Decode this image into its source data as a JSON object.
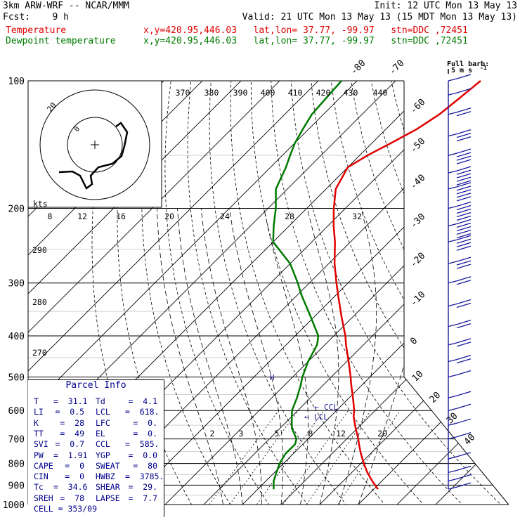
{
  "header": {
    "model": "3km ARW-WRF -- NCAR/MMM",
    "init": "Init: 12 UTC Mon 13 May 13",
    "fcst": "Fcst:    9 h",
    "valid": "Valid: 21 UTC Mon 13 May 13 (15 MDT Mon 13 May 13)",
    "temp_label": "Temperature",
    "temp_info": "x,y=420.95,446.03   lat,lon= 37.77, -99.97   stn=DDC ,72451",
    "dewp_label": "Dewpoint temperature",
    "dewp_info": "x,y=420.95,446.03   lat,lon= 37.77, -99.97   stn=DDC ,72451"
  },
  "barb_legend": {
    "title": "Full barb:",
    "value": "5 m s",
    "exp": "-1"
  },
  "hodograph": {
    "kts_label": "kts",
    "ring_label": "20",
    "inner_label": "0"
  },
  "parcel": {
    "title": "Parcel Info",
    "rows": [
      {
        "k1": "T",
        "v1": "31.1",
        "k2": "Td",
        "v2": "4.1"
      },
      {
        "k1": "LI",
        "v1": "0.5",
        "k2": "LCL",
        "v2": "618."
      },
      {
        "k1": "K",
        "v1": "28",
        "k2": "LFC",
        "v2": "0."
      },
      {
        "k1": "TT",
        "v1": "49",
        "k2": "EL",
        "v2": "0."
      },
      {
        "k1": "SVI",
        "v1": "0.7",
        "k2": "CCL",
        "v2": "585."
      },
      {
        "k1": "PW",
        "v1": "1.91",
        "k2": "YGP",
        "v2": "0.0"
      },
      {
        "k1": "CAPE",
        "v1": "0",
        "k2": "SWEAT",
        "v2": "80"
      },
      {
        "k1": "CIN",
        "v1": "0",
        "k2": "HWBZ",
        "v2": "3785."
      },
      {
        "k1": "Tc",
        "v1": "34.6",
        "k2": "SHEAR",
        "v2": "29."
      },
      {
        "k1": "SREH",
        "v1": "78",
        "k2": "LAPSE",
        "v2": "7.7"
      },
      {
        "k1": "CELL",
        "v1": "= 353/09",
        "k2": "",
        "v2": ""
      }
    ]
  },
  "level_labels": {
    "ccl": "CCL",
    "lcl": "LCL"
  },
  "chart_data": {
    "type": "line",
    "chart_kind": "skew-T log-p",
    "pressure_ticks": [
      100,
      200,
      300,
      400,
      500,
      600,
      700,
      800,
      900,
      1000
    ],
    "skewed_temp_labels": [
      -80,
      -70,
      -60,
      -50,
      -40,
      -30,
      -20,
      -10,
      0,
      10,
      20,
      30,
      40
    ],
    "theta_labels": [
      370,
      380,
      390,
      400,
      410,
      420,
      430,
      440
    ],
    "theta_axis_labels": [
      290,
      280,
      270
    ],
    "mixing_ratio_labels": [
      2,
      3,
      5,
      8,
      12,
      20
    ],
    "upper_mixing_labels": [
      8,
      12,
      16,
      20,
      24,
      28,
      32
    ],
    "legend": [
      "Temperature",
      "Dewpoint temperature"
    ],
    "colors": {
      "temperature": "#e00000",
      "dewpoint": "#007a00",
      "barbs": "#1a1aa0"
    },
    "pressure_levels": [
      920,
      880,
      840,
      800,
      760,
      720,
      700,
      660,
      620,
      600,
      560,
      520,
      500,
      460,
      420,
      400,
      360,
      320,
      300,
      270,
      240,
      220,
      200,
      180,
      160,
      150,
      140,
      130,
      120,
      110,
      100
    ],
    "series": [
      {
        "name": "Temperature",
        "values": [
          31.1,
          27.5,
          24.0,
          20.8,
          17.6,
          14.5,
          13.0,
          9.5,
          6.0,
          4.6,
          1.0,
          -3.0,
          -5.0,
          -9.5,
          -14.5,
          -17.0,
          -23.0,
          -29.5,
          -33.0,
          -38.5,
          -44.0,
          -48.5,
          -53.0,
          -57.5,
          -60.0,
          -58.0,
          -55.0,
          -52.0,
          -50.0,
          -49.0,
          -48.0
        ]
      },
      {
        "name": "Dewpoint temperature",
        "values": [
          4.1,
          2.0,
          0.5,
          -1.0,
          -2.0,
          -2.0,
          -3.0,
          -7.0,
          -10.0,
          -11.5,
          -13.5,
          -16.0,
          -17.5,
          -20.0,
          -22.0,
          -24.0,
          -31.0,
          -39.0,
          -43.0,
          -50.0,
          -60.0,
          -64.0,
          -68.0,
          -73.0,
          -76.0,
          -78.0,
          -80.0,
          -81.5,
          -83.0,
          -83.5,
          -84.0
        ]
      }
    ],
    "wind_barbs_m_s": [
      {
        "p": 920,
        "speed": 5
      },
      {
        "p": 880,
        "speed": 5
      },
      {
        "p": 840,
        "speed": 5
      },
      {
        "p": 780,
        "speed": 5
      },
      {
        "p": 700,
        "speed": 5
      },
      {
        "p": 650,
        "speed": 5
      },
      {
        "p": 600,
        "speed": 5
      },
      {
        "p": 560,
        "speed": 5
      },
      {
        "p": 500,
        "speed": 5
      },
      {
        "p": 460,
        "speed": 10
      },
      {
        "p": 420,
        "speed": 10
      },
      {
        "p": 380,
        "speed": 10
      },
      {
        "p": 340,
        "speed": 10
      },
      {
        "p": 300,
        "speed": 10
      },
      {
        "p": 270,
        "speed": 15
      },
      {
        "p": 240,
        "speed": 20
      },
      {
        "p": 220,
        "speed": 25
      },
      {
        "p": 200,
        "speed": 25
      },
      {
        "p": 180,
        "speed": 25
      },
      {
        "p": 165,
        "speed": 25
      },
      {
        "p": 150,
        "speed": 20
      },
      {
        "p": 135,
        "speed": 15
      },
      {
        "p": 120,
        "speed": 10
      },
      {
        "p": 108,
        "speed": 5
      },
      {
        "p": 100,
        "speed": 5
      }
    ]
  }
}
